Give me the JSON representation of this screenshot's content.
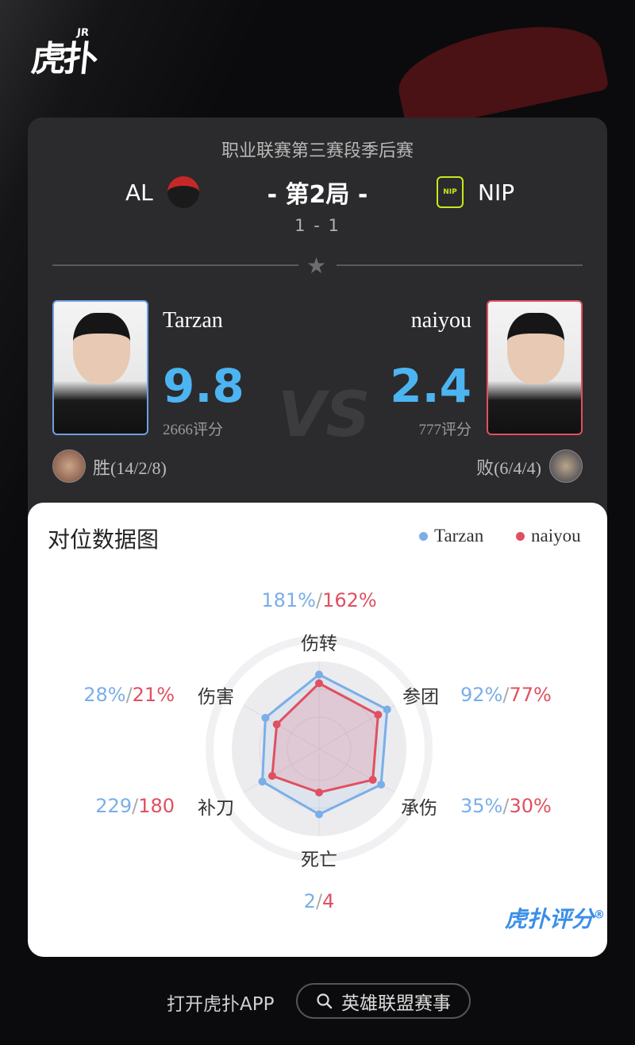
{
  "header": {
    "logo_text": "虎扑",
    "logo_badge": "JR"
  },
  "match": {
    "league": "职业联赛第三赛段季后赛",
    "game_label": "- 第2局 -",
    "series_score": "1 - 1",
    "team_left": {
      "name": "AL",
      "color": "#c62828"
    },
    "team_right": {
      "name": "NIP",
      "color": "#c8e81e"
    }
  },
  "players": {
    "left": {
      "name": "Tarzan",
      "rating": "9.8",
      "score": "2666评分",
      "result": "胜(14/2/8)",
      "border": "#6f9fe0"
    },
    "right": {
      "name": "naiyou",
      "rating": "2.4",
      "score": "777评分",
      "result": "败(6/4/4)",
      "border": "#e05060"
    },
    "vs": "VS"
  },
  "chart": {
    "title": "对位数据图",
    "legend": [
      {
        "name": "Tarzan",
        "color": "#7aaee8"
      },
      {
        "name": "naiyou",
        "color": "#e05060"
      }
    ],
    "separator": "/",
    "axes": [
      {
        "label": "伤转",
        "left": "181%",
        "right": "162%"
      },
      {
        "label": "参团",
        "left": "92%",
        "right": "77%"
      },
      {
        "label": "承伤",
        "left": "35%",
        "right": "30%"
      },
      {
        "label": "死亡",
        "left": "2",
        "right": "4"
      },
      {
        "label": "补刀",
        "left": "229",
        "right": "180"
      },
      {
        "label": "伤害",
        "left": "28%",
        "right": "21%"
      }
    ],
    "chart_data": {
      "type": "radar",
      "categories": [
        "伤转",
        "参团",
        "承伤",
        "死亡",
        "补刀",
        "伤害"
      ],
      "series": [
        {
          "name": "Tarzan",
          "values": [
            0.85,
            0.9,
            0.82,
            0.75,
            0.75,
            0.71
          ]
        },
        {
          "name": "naiyou",
          "values": [
            0.75,
            0.78,
            0.71,
            0.5,
            0.62,
            0.56
          ]
        }
      ]
    },
    "brand": "虎扑评分",
    "brand_mark": "®"
  },
  "footer": {
    "open_app": "打开虎扑APP",
    "search_label": "英雄联盟赛事"
  }
}
